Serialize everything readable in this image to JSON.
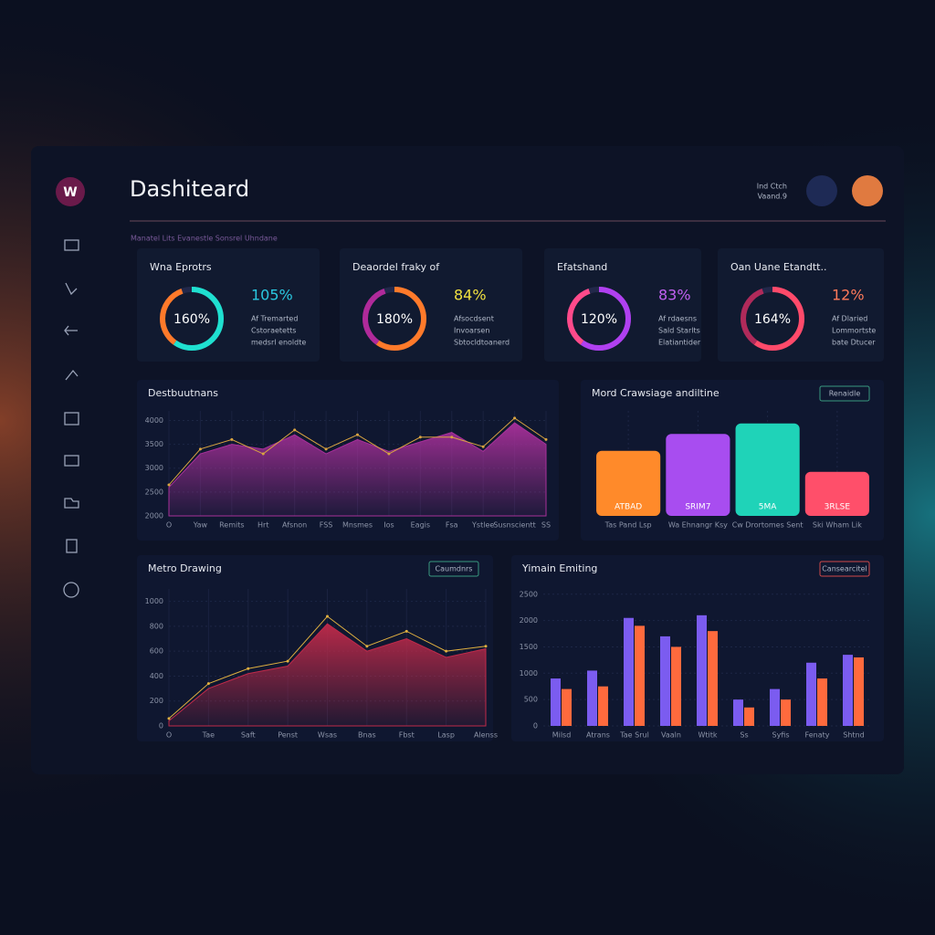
{
  "header": {
    "logo": "W",
    "title": "Dashiteard",
    "subtitle": "Manatel Lits Evanestle Sonsrel Uhndane",
    "user_line1": "Ind Ctch",
    "user_line2": "Vaand.9"
  },
  "kpi_cards": [
    {
      "title": "Wna Eprotrs",
      "ring": "160%",
      "stat": "105%",
      "lines": [
        "Af Tremarted",
        "Cstoraetetts",
        "medsrl enoldte"
      ]
    },
    {
      "title": "Deaordel fraky of",
      "ring": "180%",
      "stat": "84%",
      "lines": [
        "Afsocdsent",
        "Invoarsen",
        "Sbtocldtoanerd"
      ]
    },
    {
      "title": "Efatshand",
      "ring": "120%",
      "stat": "83%",
      "lines": [
        "Af rdaesns",
        "Sald Starlts",
        "Elatiantider"
      ]
    },
    {
      "title": "Oan Uane Etandtt..",
      "ring": "164%",
      "stat": "12%",
      "lines": [
        "Af Dlaried",
        "Lommortste",
        "bate Dtucer"
      ]
    }
  ],
  "chart_data": [
    {
      "type": "area",
      "title": "Destbuutnans",
      "categories": [
        "O",
        "Yaw",
        "Remits",
        "Hrt",
        "Afsnon",
        "FSS",
        "Mnsmes",
        "Ios",
        "Eagis",
        "Fsa",
        "Ystlee",
        "Susnscientt",
        "SS"
      ],
      "series": [
        {
          "color": "#a8309a",
          "values": [
            2600,
            3300,
            3500,
            3400,
            3700,
            3300,
            3600,
            3350,
            3550,
            3750,
            3350,
            3950,
            3500
          ]
        },
        {
          "color": "#d9a441",
          "values": [
            2650,
            3400,
            3600,
            3300,
            3800,
            3400,
            3700,
            3300,
            3650,
            3650,
            3450,
            4050,
            3600
          ]
        }
      ],
      "ylim": [
        2000,
        4200
      ],
      "yticks": [
        2000,
        2500,
        3000,
        3500,
        4000
      ],
      "grid": true
    },
    {
      "type": "bar",
      "title": "Mord Crawsiage andiltine",
      "button": "Renaidle",
      "categories": [
        "Tas Pand Lsp",
        "Wa Ehnangr Ksy",
        "Cw Drortomes Sent",
        "Ski Wham Lik"
      ],
      "values": [
        62,
        78,
        88,
        42
      ],
      "colors": [
        "#ff8a2a",
        "#a84df0",
        "#1fd3b8",
        "#ff4f6a"
      ],
      "bar_labels": [
        "ATBAD",
        "SRIM7",
        "5MA",
        "3RLSE"
      ],
      "ylim": [
        0,
        100
      ],
      "grid": true
    },
    {
      "type": "area",
      "title": "Metro Drawing",
      "button": "Caumdnrs",
      "categories": [
        "O",
        "Tae",
        "Saft",
        "Penst",
        "Wsas",
        "Bnas",
        "Fbst",
        "Lasp",
        "Alenss"
      ],
      "series": [
        {
          "color": "#c02a4a",
          "values": [
            40,
            300,
            420,
            480,
            820,
            600,
            700,
            550,
            620
          ]
        },
        {
          "color": "#e0b040",
          "values": [
            60,
            340,
            460,
            520,
            880,
            640,
            760,
            600,
            640
          ]
        }
      ],
      "ylim": [
        0,
        1100
      ],
      "yticks": [
        0,
        200,
        400,
        600,
        800,
        1000
      ],
      "grid": true
    },
    {
      "type": "bar",
      "title": "Yimain Emiting",
      "button": "Cansearcitel",
      "categories": [
        "Milsd",
        "Atrans",
        "Tae Srul",
        "Vaaln",
        "Wtitk",
        "Ss",
        "Syfis",
        "Fenaty",
        "Shtnd"
      ],
      "series": [
        {
          "color": "#7b5cf0",
          "values": [
            900,
            1050,
            2050,
            1700,
            2100,
            500,
            700,
            1200,
            1350
          ]
        },
        {
          "color": "#ff6a3d",
          "values": [
            700,
            750,
            1900,
            1500,
            1800,
            350,
            500,
            900,
            1300
          ]
        }
      ],
      "ylim": [
        0,
        2600
      ],
      "yticks": [
        0,
        500,
        1000,
        1500,
        2000,
        2500
      ],
      "grid": true
    }
  ]
}
